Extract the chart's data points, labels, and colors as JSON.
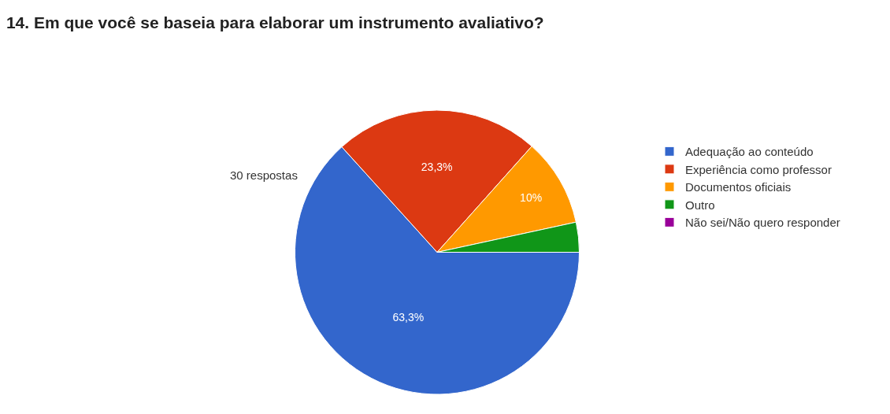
{
  "chart_data": {
    "type": "pie",
    "title": "14. Em que você se baseia para elaborar um instrumento avaliativo?",
    "subtitle": "30 respostas",
    "categories": [
      "Adequação ao conteúdo",
      "Experiência como professor",
      "Documentos oficiais",
      "Outro",
      "Não sei/Não quero responder"
    ],
    "values": [
      63.3,
      23.3,
      10,
      3.4,
      0
    ],
    "colors": [
      "#3366cc",
      "#dc3912",
      "#ff9900",
      "#109618",
      "#990099"
    ],
    "value_labels": [
      "63,3%",
      "23,3%",
      "10%",
      null,
      null
    ],
    "legend": "right"
  }
}
